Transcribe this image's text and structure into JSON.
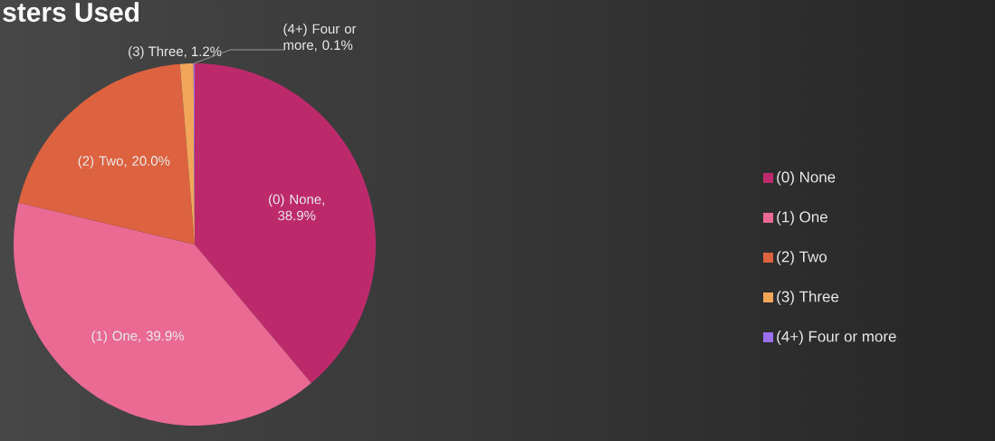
{
  "chart_data": {
    "type": "pie",
    "title": "sters Used",
    "categories": [
      "(0) None",
      "(1) One",
      "(2) Two",
      "(3) Three",
      "(4+) Four or more"
    ],
    "values": [
      38.9,
      39.9,
      20.0,
      1.2,
      0.1
    ],
    "colors": [
      "#bd2a6c",
      "#ea6a94",
      "#dd6240",
      "#f2a65a",
      "#9a6ff0"
    ],
    "value_labels": [
      "(0) None, 38.9%",
      "(1) One, 39.9%",
      "(2) Two, 20.0%",
      "(3) Three, 1.2%",
      "(4+) Four or more, 0.1%"
    ],
    "legend": "right"
  }
}
